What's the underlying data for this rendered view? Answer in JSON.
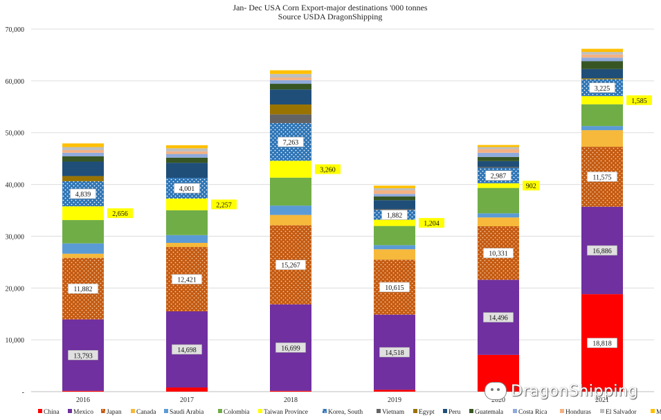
{
  "chart_data": {
    "type": "bar",
    "stacked": true,
    "title": "Jan- Dec USA Corn Export-major destinations '000 tonnes",
    "subtitle": "Source USDA DragonShipping",
    "categories": [
      "2016",
      "2017",
      "2018",
      "2019",
      "2020",
      "2021"
    ],
    "ylim": [
      0,
      70000
    ],
    "yticks": [
      0,
      10000,
      20000,
      30000,
      40000,
      50000,
      60000,
      70000
    ],
    "ytick_labels": [
      "-",
      "10,000",
      "20,000",
      "30,000",
      "40,000",
      "50,000",
      "60,000",
      "70,000"
    ],
    "grid": true,
    "legend_position": "bottom",
    "series": [
      {
        "name": "China",
        "color": "#ff0000",
        "pattern": "solid",
        "values": [
          150,
          800,
          150,
          350,
          7100,
          18818
        ],
        "labels": [
          "",
          "",
          "",
          "",
          "",
          "18,818"
        ],
        "label_style": "box"
      },
      {
        "name": "Mexico",
        "color": "#7030a0",
        "pattern": "solid",
        "values": [
          13793,
          14698,
          16699,
          14518,
          14496,
          16886
        ],
        "labels": [
          "13,793",
          "14,698",
          "16,699",
          "14,518",
          "14,496",
          "16,886"
        ],
        "label_style": "box-grey"
      },
      {
        "name": "Japan",
        "color": "#c55a11",
        "pattern": "dots",
        "values": [
          11882,
          12421,
          15267,
          10615,
          10331,
          11575
        ],
        "labels": [
          "11,882",
          "12,421",
          "15,267",
          "10,615",
          "10,331",
          "11,575"
        ],
        "label_style": "box"
      },
      {
        "name": "Canada",
        "color": "#f6b93b",
        "pattern": "solid",
        "values": [
          800,
          800,
          2000,
          2000,
          1700,
          3200
        ],
        "labels": [
          "",
          "",
          "",
          "",
          "",
          ""
        ]
      },
      {
        "name": "Saudi Arabia",
        "color": "#5b9bd5",
        "pattern": "solid",
        "values": [
          2000,
          1500,
          1800,
          800,
          800,
          800
        ],
        "labels": [
          "",
          "",
          "",
          "",
          "",
          ""
        ]
      },
      {
        "name": "Colombia",
        "color": "#70ad47",
        "pattern": "solid",
        "values": [
          4500,
          4800,
          5400,
          3700,
          4900,
          4200
        ],
        "labels": [
          "",
          "",
          "",
          "",
          "",
          ""
        ]
      },
      {
        "name": "Taiwan Provínce",
        "color": "#ffff00",
        "pattern": "solid",
        "values": [
          2656,
          2257,
          3260,
          1204,
          902,
          1585
        ],
        "labels": [
          "2,656",
          "2,257",
          "3,260",
          "1,204",
          "902",
          "1,585"
        ],
        "label_style": "callout"
      },
      {
        "name": "Korea, South",
        "color": "#2e75b6",
        "pattern": "dots-white",
        "values": [
          4839,
          4001,
          7263,
          1882,
          2987,
          3225
        ],
        "labels": [
          "4,839",
          "4,001",
          "7,263",
          "1,882",
          "2,987",
          "3,225"
        ],
        "label_style": "box"
      },
      {
        "name": "Vietnam",
        "color": "#636363",
        "pattern": "solid",
        "values": [
          0,
          0,
          1700,
          200,
          200,
          0
        ],
        "labels": [
          "",
          "",
          "",
          "",
          "",
          ""
        ]
      },
      {
        "name": "Egypt",
        "color": "#997300",
        "pattern": "solid",
        "values": [
          1000,
          0,
          1900,
          0,
          0,
          200
        ],
        "labels": [
          "",
          "",
          "",
          "",
          "",
          ""
        ]
      },
      {
        "name": "Peru",
        "color": "#1f4e79",
        "pattern": "solid",
        "values": [
          2800,
          2900,
          2900,
          1700,
          1100,
          1800
        ],
        "labels": [
          "",
          "",
          "",
          "",
          "",
          ""
        ]
      },
      {
        "name": "Guatemala",
        "color": "#375623",
        "pattern": "solid",
        "values": [
          1000,
          1000,
          1100,
          700,
          800,
          1500
        ],
        "labels": [
          "",
          "",
          "",
          "",
          "",
          ""
        ]
      },
      {
        "name": "Costa Rica",
        "color": "#8faadc",
        "pattern": "solid",
        "values": [
          700,
          700,
          700,
          500,
          800,
          700
        ],
        "labels": [
          "",
          "",
          "",
          "",
          "",
          ""
        ]
      },
      {
        "name": "Honduras",
        "color": "#f4b183",
        "pattern": "solid",
        "values": [
          500,
          500,
          500,
          700,
          700,
          600
        ],
        "labels": [
          "",
          "",
          "",
          "",
          "",
          ""
        ]
      },
      {
        "name": "El Salvador",
        "color": "#bfbfbf",
        "pattern": "solid",
        "values": [
          600,
          600,
          700,
          400,
          400,
          500
        ],
        "labels": [
          "",
          "",
          "",
          "",
          "",
          ""
        ]
      },
      {
        "name": "Morocco",
        "color": "#ffc000",
        "pattern": "solid",
        "values": [
          700,
          600,
          700,
          500,
          400,
          600
        ],
        "labels": [
          "",
          "",
          "",
          "",
          "",
          ""
        ]
      }
    ]
  },
  "watermark": {
    "text": "DragonShipping",
    "icon": "wechat-icon"
  }
}
